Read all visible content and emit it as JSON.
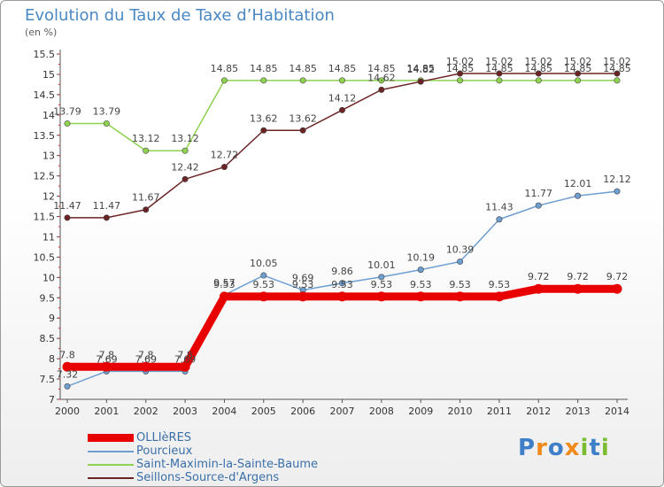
{
  "title": "Evolution du Taux de Taxe d’Habitation",
  "subtitle": "(en %)",
  "logo": {
    "text": "Proxiti",
    "letters": [
      {
        "ch": "P",
        "color": "#3f7fc8"
      },
      {
        "ch": "r",
        "color": "#f08a1c"
      },
      {
        "ch": "o",
        "color": "#3f7fc8"
      },
      {
        "ch": "x",
        "color": "#f08a1c"
      },
      {
        "ch": "i",
        "color": "#7cbc33"
      },
      {
        "ch": "t",
        "color": "#3f7fc8"
      },
      {
        "ch": "i",
        "color": "#7cbc33"
      }
    ]
  },
  "chart_data": {
    "type": "line",
    "title": "Evolution du Taux de Taxe d’Habitation",
    "ylabel": "(en %)",
    "xlabel": "",
    "x": [
      2000,
      2001,
      2002,
      2003,
      2004,
      2005,
      2006,
      2007,
      2008,
      2009,
      2010,
      2011,
      2012,
      2013,
      2014
    ],
    "ylim": [
      7,
      15.5
    ],
    "yticks": [
      7,
      7.5,
      8,
      8.5,
      9,
      9.5,
      10,
      10.5,
      11,
      11.5,
      12,
      12.5,
      13,
      13.5,
      14,
      14.5,
      15,
      15.5
    ],
    "ytick_labels": [
      "7",
      "7.5",
      "8",
      "8.5",
      "9",
      "9.5",
      "10",
      "10.5",
      "11",
      "11.5",
      "12",
      "12.5",
      "13",
      "13.5",
      "14",
      "14.5",
      "15",
      "15.5"
    ],
    "grid": false,
    "legend_position": "bottom-left",
    "series": [
      {
        "name": "OLLIèRES",
        "color": "#e80000",
        "values": [
          7.8,
          7.8,
          7.8,
          7.8,
          9.53,
          9.53,
          9.53,
          9.53,
          9.53,
          9.53,
          9.53,
          9.53,
          9.72,
          9.72,
          9.72
        ],
        "labels": [
          "7.8",
          "7.8",
          "7.8",
          "7.8",
          "9.53",
          "9.53",
          "9.53",
          "9.53",
          "9.53",
          "9.53",
          "9.53",
          "9.53",
          "9.72",
          "9.72",
          "9.72"
        ]
      },
      {
        "name": "Pourcieux",
        "color": "#6e9fd1",
        "values": [
          7.32,
          7.69,
          7.69,
          7.69,
          9.57,
          10.05,
          9.69,
          9.86,
          10.01,
          10.19,
          10.39,
          11.43,
          11.77,
          12.01,
          12.12
        ],
        "labels": [
          "7.32",
          "7.69",
          "7.69",
          "7.69",
          "9.57",
          "10.05",
          "9.69",
          "9.86",
          "10.01",
          "10.19",
          "10.39",
          "11.43",
          "11.77",
          "12.01",
          "12.12"
        ]
      },
      {
        "name": "Saint-Maximin-la-Sainte-Baume",
        "color": "#8fd150",
        "values": [
          13.79,
          13.79,
          13.12,
          13.12,
          14.85,
          14.85,
          14.85,
          14.85,
          14.85,
          14.85,
          14.85,
          14.85,
          14.85,
          14.85,
          14.85
        ],
        "labels": [
          "13.79",
          "13.79",
          "13.12",
          "13.12",
          "14.85",
          "14.85",
          "14.85",
          "14.85",
          "14.85",
          "14.85",
          "14.85",
          "14.85",
          "14.85",
          "14.85",
          "14.85"
        ]
      },
      {
        "name": "Seillons-Source-d'Argens",
        "color": "#6b2323",
        "values": [
          11.47,
          11.47,
          11.67,
          12.42,
          12.72,
          13.62,
          13.62,
          14.12,
          14.62,
          14.82,
          15.02,
          15.02,
          15.02,
          15.02,
          15.02
        ],
        "labels": [
          "11.47",
          "11.47",
          "11.67",
          "12.42",
          "12.72",
          "13.62",
          "13.62",
          "14.12",
          "14.62",
          "14.82",
          "15.02",
          "15.02",
          "15.02",
          "15.02",
          "15.02"
        ]
      }
    ]
  }
}
